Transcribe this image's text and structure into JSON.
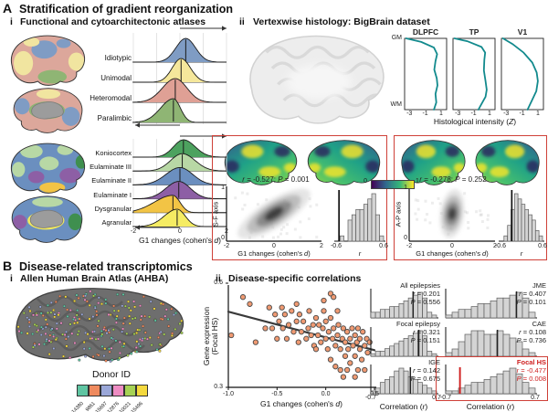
{
  "panelA": {
    "label": "A",
    "title": "Stratification of gradient reorganization",
    "i_label": "i",
    "i_title": "Functional and cytoarchitectonic atlases",
    "ii_label": "ii",
    "ii_title": "Vertexwise histology: BigBrain dataset"
  },
  "panelB": {
    "label": "B",
    "title": "Disease-related transcriptomics",
    "i_label": "i",
    "i_title": "Allen Human Brain Atlas (AHBA)",
    "ii_label": "ii",
    "ii_title": "Disease-specific correlations",
    "donor_legend": {
      "title": "Donor ID",
      "donors": [
        {
          "id": "14380",
          "color": "#5fc5a2"
        },
        {
          "id": "9861",
          "color": "#ef8a5e"
        },
        {
          "id": "15697",
          "color": "#9aa7d8"
        },
        {
          "id": "12876",
          "color": "#ee8cc3"
        },
        {
          "id": "10021",
          "color": "#a6d254"
        },
        {
          "id": "15496",
          "color": "#f4d93e"
        }
      ]
    }
  },
  "stat_labels": {
    "r": "r",
    "P": "P"
  },
  "chart_data": [
    {
      "id": "ridge_functional",
      "type": "area",
      "categories": [
        "Idiotypic",
        "Unimodal",
        "Heteromodal",
        "Paralimbic"
      ],
      "colors": [
        "#7f9cc4",
        "#f5e79b",
        "#dfa095",
        "#8fb574"
      ],
      "centers": [
        0.25,
        0.05,
        -0.2,
        -0.28
      ],
      "spread": [
        [
          0.42,
          0.42
        ],
        [
          0.38,
          0.4
        ],
        [
          0.55,
          0.5
        ],
        [
          0.55,
          0.3
        ]
      ],
      "xlim": [
        -2,
        2
      ],
      "gridlines": [
        -2,
        -1,
        0,
        1,
        2
      ]
    },
    {
      "id": "ridge_cyto",
      "type": "area",
      "categories": [
        "Koniocortex",
        "Eulaminate III",
        "Eulaminate II",
        "Eulaminate I",
        "Dysgranular",
        "Agranular"
      ],
      "colors": [
        "#4da25f",
        "#b8d8a5",
        "#6b8fbf",
        "#8d5fa5",
        "#f2c445",
        "#f5ec63"
      ],
      "centers": [
        0.15,
        0.1,
        0.0,
        -0.05,
        -0.3,
        -0.12
      ],
      "spread": [
        [
          0.42,
          0.5
        ],
        [
          0.5,
          0.55
        ],
        [
          0.6,
          0.55
        ],
        [
          0.55,
          0.5
        ],
        [
          0.8,
          0.3
        ],
        [
          0.55,
          0.35
        ]
      ],
      "xlim": [
        -2,
        2
      ],
      "gridlines": [
        -2,
        -1,
        0,
        1,
        2
      ],
      "xticks": [
        "-2",
        "0",
        "2"
      ],
      "xlabel": "G1 changes (cohen's d)"
    },
    {
      "id": "histology",
      "type": "line",
      "xlabel": "Histological intensity (Z)",
      "xticks": [
        "-3",
        "-1",
        "1"
      ],
      "xlim": [
        -3.6,
        1.7
      ],
      "y_top": "GM",
      "y_bottom": "WM",
      "line_color": "#128a8d",
      "panels": [
        {
          "title": "DLPFC",
          "points": [
            [
              -3.4,
              0
            ],
            [
              -1.5,
              0.05
            ],
            [
              0.1,
              0.13
            ],
            [
              0.5,
              0.22
            ],
            [
              0.3,
              0.32
            ],
            [
              0.15,
              0.44
            ],
            [
              0.45,
              0.56
            ],
            [
              0.55,
              0.66
            ],
            [
              0.3,
              0.78
            ],
            [
              0.4,
              0.9
            ],
            [
              0.1,
              1
            ]
          ]
        },
        {
          "title": "TP",
          "points": [
            [
              -3.4,
              0
            ],
            [
              -1.8,
              0.04
            ],
            [
              0,
              0.12
            ],
            [
              0.45,
              0.2
            ],
            [
              0.35,
              0.3
            ],
            [
              0.3,
              0.45
            ],
            [
              0.5,
              0.6
            ],
            [
              0.65,
              0.72
            ],
            [
              0.5,
              0.82
            ],
            [
              0,
              0.92
            ],
            [
              -0.4,
              1
            ]
          ]
        },
        {
          "title": "V1",
          "points": [
            [
              -3.4,
              0
            ],
            [
              -2.2,
              0.08
            ],
            [
              -0.8,
              0.2
            ],
            [
              0.3,
              0.34
            ],
            [
              0.85,
              0.48
            ],
            [
              1,
              0.6
            ],
            [
              0.8,
              0.74
            ],
            [
              0.3,
              0.86
            ],
            [
              -0.3,
              1
            ]
          ]
        }
      ]
    },
    {
      "id": "gradient_colorbar",
      "type": "colorbar",
      "ticks": [
        "0",
        "1"
      ],
      "colors": [
        "#440154",
        "#31688e",
        "#35b779",
        "#fde725"
      ]
    },
    {
      "id": "sf_corr",
      "type": "density+hist",
      "stats": {
        "r": "-0.527",
        "P": "0.001"
      },
      "ylabel": "S-F axis",
      "yticks": [
        "1",
        "0"
      ],
      "xticks": [
        "-2",
        "0",
        "2"
      ],
      "xlim": [
        -2,
        2
      ],
      "xlabel": "G1 changes (cohen's d)",
      "density_angle": -32,
      "hist": {
        "bars": [
          0,
          1,
          0,
          4,
          5,
          6,
          6,
          7,
          8,
          9,
          5,
          1
        ],
        "xlim": [
          -0.6,
          0.6
        ],
        "xticks": [
          "-0.6",
          "0.6"
        ],
        "xlabel": "r",
        "observed": -0.527,
        "observed_color": "#111111"
      }
    },
    {
      "id": "ap_corr",
      "type": "density+hist",
      "stats": {
        "r": "-0.278",
        "P": "0.252"
      },
      "ylabel": "A-P axis",
      "yticks": [
        "1",
        "0"
      ],
      "xticks": [
        "-2",
        "0",
        "2"
      ],
      "xlim": [
        -2,
        2
      ],
      "xlabel": "G1 changes (cohen's d)",
      "density_angle": -82,
      "hist": {
        "bars": [
          0,
          1,
          3,
          6,
          9,
          8,
          7,
          6,
          5,
          4,
          2,
          1
        ],
        "xlim": [
          -0.6,
          0.6
        ],
        "xticks": [
          "-0.6",
          "0.6"
        ],
        "xlabel": "r",
        "observed": -0.278,
        "observed_color": "#111111"
      }
    },
    {
      "id": "ahba_scatter",
      "type": "scatter",
      "xlabel": "G1 changes (cohen's d)",
      "ylabel_lines": [
        "Gene expression",
        "(Focal HS)"
      ],
      "xticks": [
        "-1.0",
        "-0.5",
        "0.0",
        "0.5"
      ],
      "xtick_vals": [
        -1.0,
        -0.5,
        0.0,
        0.5
      ],
      "yticks": [
        "0.6",
        "0.3"
      ],
      "ytick_vals": [
        0.6,
        0.3
      ],
      "xlim": [
        -1.0,
        0.5
      ],
      "ylim": [
        0.3,
        0.6
      ],
      "point_color": "#f09a72",
      "trend": [
        [
          -1.0,
          0.518
        ],
        [
          0.5,
          0.407
        ]
      ],
      "points": [
        [
          -0.97,
          0.45
        ],
        [
          -0.85,
          0.56
        ],
        [
          -0.78,
          0.54
        ],
        [
          -0.72,
          0.43
        ],
        [
          -0.62,
          0.47
        ],
        [
          -0.58,
          0.53
        ],
        [
          -0.55,
          0.47
        ],
        [
          -0.52,
          0.51
        ],
        [
          -0.5,
          0.44
        ],
        [
          -0.48,
          0.49
        ],
        [
          -0.45,
          0.53
        ],
        [
          -0.44,
          0.47
        ],
        [
          -0.42,
          0.51
        ],
        [
          -0.4,
          0.44
        ],
        [
          -0.38,
          0.48
        ],
        [
          -0.35,
          0.52
        ],
        [
          -0.33,
          0.46
        ],
        [
          -0.3,
          0.49
        ],
        [
          -0.3,
          0.54
        ],
        [
          -0.28,
          0.43
        ],
        [
          -0.27,
          0.51
        ],
        [
          -0.25,
          0.46
        ],
        [
          -0.23,
          0.49
        ],
        [
          -0.2,
          0.44
        ],
        [
          -0.18,
          0.47
        ],
        [
          -0.17,
          0.52
        ],
        [
          -0.15,
          0.45
        ],
        [
          -0.13,
          0.48
        ],
        [
          -0.12,
          0.42
        ],
        [
          -0.1,
          0.5
        ],
        [
          -0.1,
          0.41
        ],
        [
          -0.08,
          0.45
        ],
        [
          -0.07,
          0.48
        ],
        [
          -0.05,
          0.43
        ],
        [
          -0.03,
          0.47
        ],
        [
          -0.02,
          0.55
        ],
        [
          -0.02,
          0.52
        ],
        [
          0.0,
          0.44
        ],
        [
          0.0,
          0.49
        ],
        [
          0.02,
          0.41
        ],
        [
          0.03,
          0.46
        ],
        [
          0.05,
          0.5
        ],
        [
          0.05,
          0.38
        ],
        [
          0.05,
          0.57
        ],
        [
          0.07,
          0.44
        ],
        [
          0.08,
          0.47
        ],
        [
          0.08,
          0.56
        ],
        [
          0.1,
          0.42
        ],
        [
          0.1,
          0.36
        ],
        [
          0.12,
          0.45
        ],
        [
          0.12,
          0.52
        ],
        [
          0.13,
          0.48
        ],
        [
          0.15,
          0.41
        ],
        [
          0.15,
          0.35
        ],
        [
          0.17,
          0.44
        ],
        [
          0.18,
          0.47
        ],
        [
          0.18,
          0.33
        ],
        [
          0.2,
          0.39
        ],
        [
          0.2,
          0.43
        ],
        [
          0.22,
          0.46
        ],
        [
          0.22,
          0.35
        ],
        [
          0.23,
          0.41
        ],
        [
          0.25,
          0.44
        ],
        [
          0.25,
          0.37
        ],
        [
          0.27,
          0.47
        ],
        [
          0.28,
          0.42
        ],
        [
          0.3,
          0.45
        ],
        [
          0.3,
          0.39
        ],
        [
          0.3,
          0.33
        ],
        [
          0.32,
          0.43
        ],
        [
          0.33,
          0.47
        ],
        [
          0.33,
          0.35
        ],
        [
          0.35,
          0.41
        ],
        [
          0.35,
          0.44
        ],
        [
          0.37,
          0.38
        ],
        [
          0.38,
          0.46
        ],
        [
          0.4,
          0.42
        ],
        [
          0.4,
          0.35
        ],
        [
          0.42,
          0.44
        ],
        [
          0.43,
          0.4
        ],
        [
          0.45,
          0.43
        ]
      ]
    },
    {
      "id": "disease_hists",
      "type": "bar",
      "xlabel": "Correlation (r)",
      "xticks": [
        "-0.7",
        "0.7"
      ],
      "xlim": [
        -0.7,
        0.7
      ],
      "cells": [
        {
          "name": "All epilepsies",
          "r": "0.201",
          "P": "0.556",
          "r_val": 0.201,
          "col": 0,
          "row": 0,
          "bars": [
            2,
            2,
            3,
            3,
            4,
            4,
            5,
            6,
            7,
            8,
            9,
            7,
            2,
            1
          ]
        },
        {
          "name": "Focal epilepsy",
          "r": "0.321",
          "P": "0.151",
          "r_val": 0.321,
          "col": 0,
          "row": 1,
          "bars": [
            1,
            2,
            2,
            3,
            4,
            5,
            6,
            7,
            8,
            9,
            10,
            8,
            2,
            1
          ]
        },
        {
          "name": "IGE",
          "r": "0.142",
          "P": "0.675",
          "r_val": 0.142,
          "col": 0,
          "row": 2,
          "bars": [
            1,
            2,
            4,
            5,
            6,
            8,
            9,
            8,
            6,
            5,
            4,
            3,
            2,
            1
          ]
        },
        {
          "name": "JME",
          "r": "0.407",
          "P": "0.101",
          "r_val": 0.407,
          "col": 1,
          "row": 0,
          "bars": [
            1,
            2,
            3,
            3,
            4,
            5,
            5,
            6,
            7,
            7,
            8,
            9,
            7,
            2
          ]
        },
        {
          "name": "CAE",
          "r": "0.108",
          "P": "0.736",
          "r_val": 0.108,
          "col": 1,
          "row": 1,
          "bars": [
            1,
            2,
            4,
            6,
            7,
            7,
            6,
            6,
            7,
            6,
            5,
            4,
            2,
            1
          ]
        },
        {
          "name": "Focal HS",
          "r": "-0.477",
          "P": "0.008",
          "r_val": -0.477,
          "col": 1,
          "row": 2,
          "bars": [
            1,
            1,
            2,
            3,
            4,
            4,
            5,
            6,
            7,
            8,
            9,
            7,
            4,
            2
          ],
          "highlight": true,
          "highlight_color": "#cf1f1f"
        }
      ]
    }
  ]
}
